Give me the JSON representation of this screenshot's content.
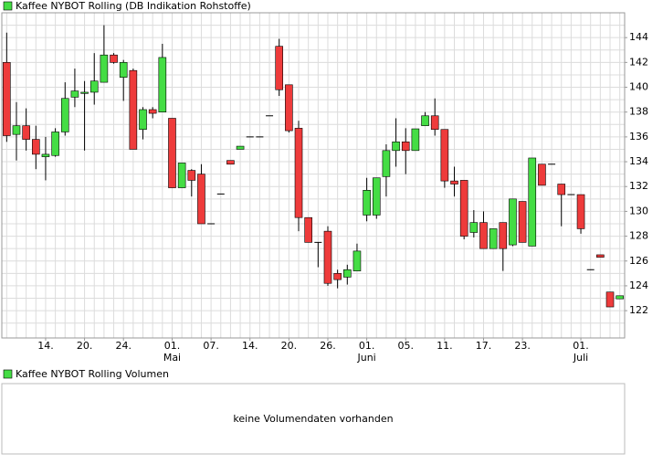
{
  "chart_data": {
    "type": "candlestick",
    "title": "Kaffee NYBOT Rolling (DB Indikation Rohstoffe)",
    "legend_color": "#44dd44",
    "up_color": "#44dd44",
    "down_color": "#ee3b3b",
    "doji_color": "#000000",
    "categories": [
      null,
      null,
      null,
      null,
      "14.",
      null,
      null,
      null,
      "20.",
      null,
      null,
      null,
      "24.",
      null,
      null,
      null,
      null,
      "01.",
      null,
      null,
      null,
      "07.",
      null,
      null,
      null,
      "14.",
      null,
      null,
      null,
      "20.",
      null,
      null,
      null,
      "26.",
      null,
      null,
      null,
      "01.",
      null,
      null,
      null,
      "05.",
      null,
      null,
      null,
      "11.",
      null,
      null,
      null,
      "17.",
      null,
      null,
      null,
      "23.",
      null,
      null,
      null,
      null,
      null,
      "01.",
      null,
      null,
      null,
      null
    ],
    "month_labels": [
      null,
      null,
      null,
      null,
      null,
      null,
      null,
      null,
      null,
      null,
      null,
      null,
      null,
      null,
      null,
      null,
      null,
      "Mai",
      null,
      null,
      null,
      null,
      null,
      null,
      null,
      null,
      null,
      null,
      null,
      null,
      null,
      null,
      null,
      null,
      null,
      null,
      null,
      "Juni",
      null,
      null,
      null,
      null,
      null,
      null,
      null,
      null,
      null,
      null,
      null,
      null,
      null,
      null,
      null,
      null,
      null,
      null,
      null,
      null,
      null,
      "Juli",
      null,
      null,
      null,
      null
    ],
    "open": [
      142.0,
      136.2,
      136.9,
      135.8,
      134.4,
      134.5,
      136.4,
      139.2,
      139.5,
      139.6,
      140.4,
      142.6,
      140.8,
      141.35,
      136.6,
      138.2,
      138.0,
      137.5,
      131.9,
      133.3,
      133.0,
      129.0,
      131.4,
      134.1,
      135.0,
      136.0,
      136.0,
      137.7,
      143.3,
      140.2,
      136.7,
      129.5,
      127.5,
      128.4,
      125.0,
      124.7,
      125.2,
      129.7,
      129.7,
      132.8,
      134.9,
      135.6,
      134.9,
      136.9,
      137.7,
      136.6,
      132.45,
      132.5,
      128.3,
      129.1,
      127.0,
      129.1,
      127.3,
      130.8,
      127.2,
      133.8,
      133.8,
      132.2,
      131.35,
      131.35,
      125.3,
      126.5,
      123.5,
      122.95
    ],
    "high": [
      144.4,
      138.8,
      138.3,
      136.9,
      136.0,
      136.7,
      140.4,
      141.5,
      140.5,
      142.75,
      145.0,
      142.75,
      142.2,
      141.5,
      138.4,
      138.4,
      143.5,
      137.5,
      133.9,
      133.4,
      133.8,
      129.0,
      131.4,
      134.1,
      135.25,
      136.0,
      136.0,
      137.7,
      143.9,
      140.2,
      137.3,
      129.5,
      127.5,
      128.8,
      125.3,
      125.7,
      127.4,
      132.7,
      132.7,
      135.4,
      137.5,
      136.7,
      136.65,
      138.0,
      139.1,
      136.6,
      133.6,
      132.5,
      130.1,
      130.0,
      128.6,
      129.1,
      131.0,
      130.8,
      134.3,
      133.8,
      133.8,
      132.2,
      131.35,
      131.35,
      125.3,
      126.5,
      123.5,
      123.2
    ],
    "low": [
      135.6,
      134.1,
      134.9,
      133.4,
      132.5,
      134.4,
      136.1,
      138.4,
      134.9,
      138.6,
      140.4,
      141.9,
      138.9,
      135.0,
      135.8,
      137.5,
      138.0,
      131.9,
      131.9,
      131.2,
      129.0,
      129.0,
      131.4,
      133.8,
      135.0,
      136.0,
      136.0,
      137.7,
      139.3,
      136.35,
      128.4,
      127.5,
      125.5,
      124.0,
      123.8,
      124.1,
      125.2,
      129.2,
      129.4,
      131.2,
      133.6,
      133.0,
      134.9,
      136.9,
      136.1,
      131.9,
      131.2,
      127.75,
      127.9,
      127.0,
      127.0,
      125.2,
      127.2,
      127.5,
      127.2,
      132.1,
      133.8,
      128.8,
      131.35,
      128.2,
      125.3,
      126.3,
      122.3,
      122.95
    ],
    "close": [
      136.1,
      136.9,
      135.8,
      134.6,
      134.6,
      136.4,
      139.1,
      139.7,
      139.6,
      140.5,
      142.6,
      142.0,
      142.0,
      135.0,
      138.2,
      137.9,
      142.4,
      131.9,
      133.9,
      132.5,
      129.0,
      129.0,
      131.4,
      133.8,
      135.25,
      136.0,
      136.0,
      137.7,
      139.8,
      136.5,
      129.5,
      127.5,
      127.5,
      124.2,
      124.5,
      125.3,
      126.8,
      131.7,
      132.7,
      134.9,
      135.6,
      134.9,
      136.65,
      137.7,
      136.6,
      132.45,
      132.2,
      128.0,
      129.1,
      127.0,
      128.6,
      127.0,
      131.0,
      127.5,
      134.3,
      132.1,
      133.8,
      131.35,
      131.35,
      128.6,
      125.3,
      126.3,
      122.3,
      123.2
    ],
    "ylim": [
      119.8,
      146
    ],
    "yticks": [
      122,
      124,
      126,
      128,
      130,
      132,
      134,
      136,
      138,
      140,
      142,
      144
    ],
    "y_minor_ticks": [
      121,
      123,
      125,
      127,
      129,
      131,
      133,
      135,
      137,
      139,
      141,
      143,
      145
    ],
    "grid": true
  },
  "volume_panel": {
    "title": "Kaffee NYBOT Rolling Volumen",
    "legend_color": "#44dd44",
    "message": "keine Volumendaten vorhanden"
  }
}
